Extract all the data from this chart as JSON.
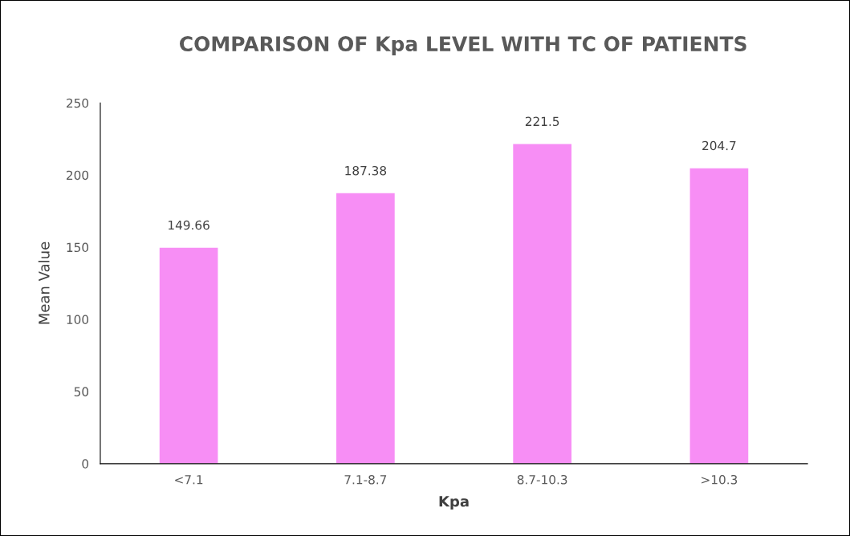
{
  "chart_data": {
    "type": "bar",
    "title": "COMPARISON OF Kpa LEVEL WITH TC OF PATIENTS",
    "xlabel": "Kpa",
    "ylabel": "Mean Value",
    "categories": [
      "<7.1",
      "7.1-8.7",
      "8.7-10.3",
      ">10.3"
    ],
    "values": [
      149.66,
      187.38,
      221.5,
      204.7
    ],
    "color": "#f78ef5",
    "ylim": [
      0,
      250
    ],
    "yticks": [
      0,
      50,
      100,
      150,
      200,
      250
    ],
    "grid": false,
    "data_labels": true
  }
}
